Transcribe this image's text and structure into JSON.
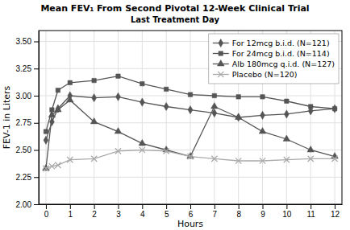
{
  "chart_data": {
    "type": "line",
    "title": "Mean FEV₁ From Second Pivotal 12-Week Clinical Trial",
    "subtitle": "Last Treatment Day",
    "x_label": "Hours",
    "y_label": "FEV-1 in Liters",
    "x": [
      0,
      0.25,
      0.5,
      1,
      2,
      3,
      4,
      5,
      6,
      7,
      8,
      9,
      10,
      11,
      12
    ],
    "xlim": [
      -0.3,
      12.3
    ],
    "xticks": [
      0,
      1,
      2,
      3,
      4,
      5,
      6,
      7,
      8,
      9,
      10,
      11,
      12
    ],
    "ylim": [
      2.0,
      3.6
    ],
    "yticks": [
      {
        "value": 2.0,
        "label": "2.00"
      },
      2.25,
      {
        "value": 2.5,
        "label": "2.50"
      },
      2.75,
      {
        "value": 3.0,
        "label": "3.00"
      },
      3.25,
      {
        "value": 3.5,
        "label": "3.50"
      }
    ],
    "grid": true,
    "legend": "upper-right",
    "series": [
      {
        "name": "For 12mcg b.i.d. (N=121)",
        "color": "#555555",
        "marker": "diamond",
        "line_style": "solid",
        "values": [
          2.59,
          2.76,
          2.88,
          3.0,
          2.98,
          2.99,
          2.94,
          2.9,
          2.87,
          2.84,
          2.8,
          2.82,
          2.83,
          2.86,
          2.88
        ]
      },
      {
        "name": "For 24mcg b.i.d. (N=114)",
        "color": "#555555",
        "marker": "square",
        "line_style": "solid",
        "values": [
          2.67,
          2.87,
          3.05,
          3.12,
          3.14,
          3.18,
          3.11,
          3.06,
          3.01,
          3.0,
          2.99,
          2.99,
          2.95,
          2.9,
          2.88
        ]
      },
      {
        "name": "Alb 180mcg q.i.d. (N=127)",
        "color": "#555555",
        "marker": "triangle",
        "line_style": "solid",
        "values": [
          2.33,
          2.82,
          2.87,
          2.96,
          2.76,
          2.67,
          2.56,
          2.5,
          2.44,
          2.9,
          2.8,
          2.67,
          2.6,
          2.5,
          2.44
        ]
      },
      {
        "name": "Placebo (N=120)",
        "color": "#aaaaaa",
        "marker": "x",
        "line_style": "solid",
        "values": [
          2.33,
          2.35,
          2.36,
          2.41,
          2.42,
          2.49,
          2.5,
          2.49,
          2.44,
          2.42,
          2.4,
          2.4,
          2.41,
          2.42,
          2.42
        ]
      }
    ]
  }
}
